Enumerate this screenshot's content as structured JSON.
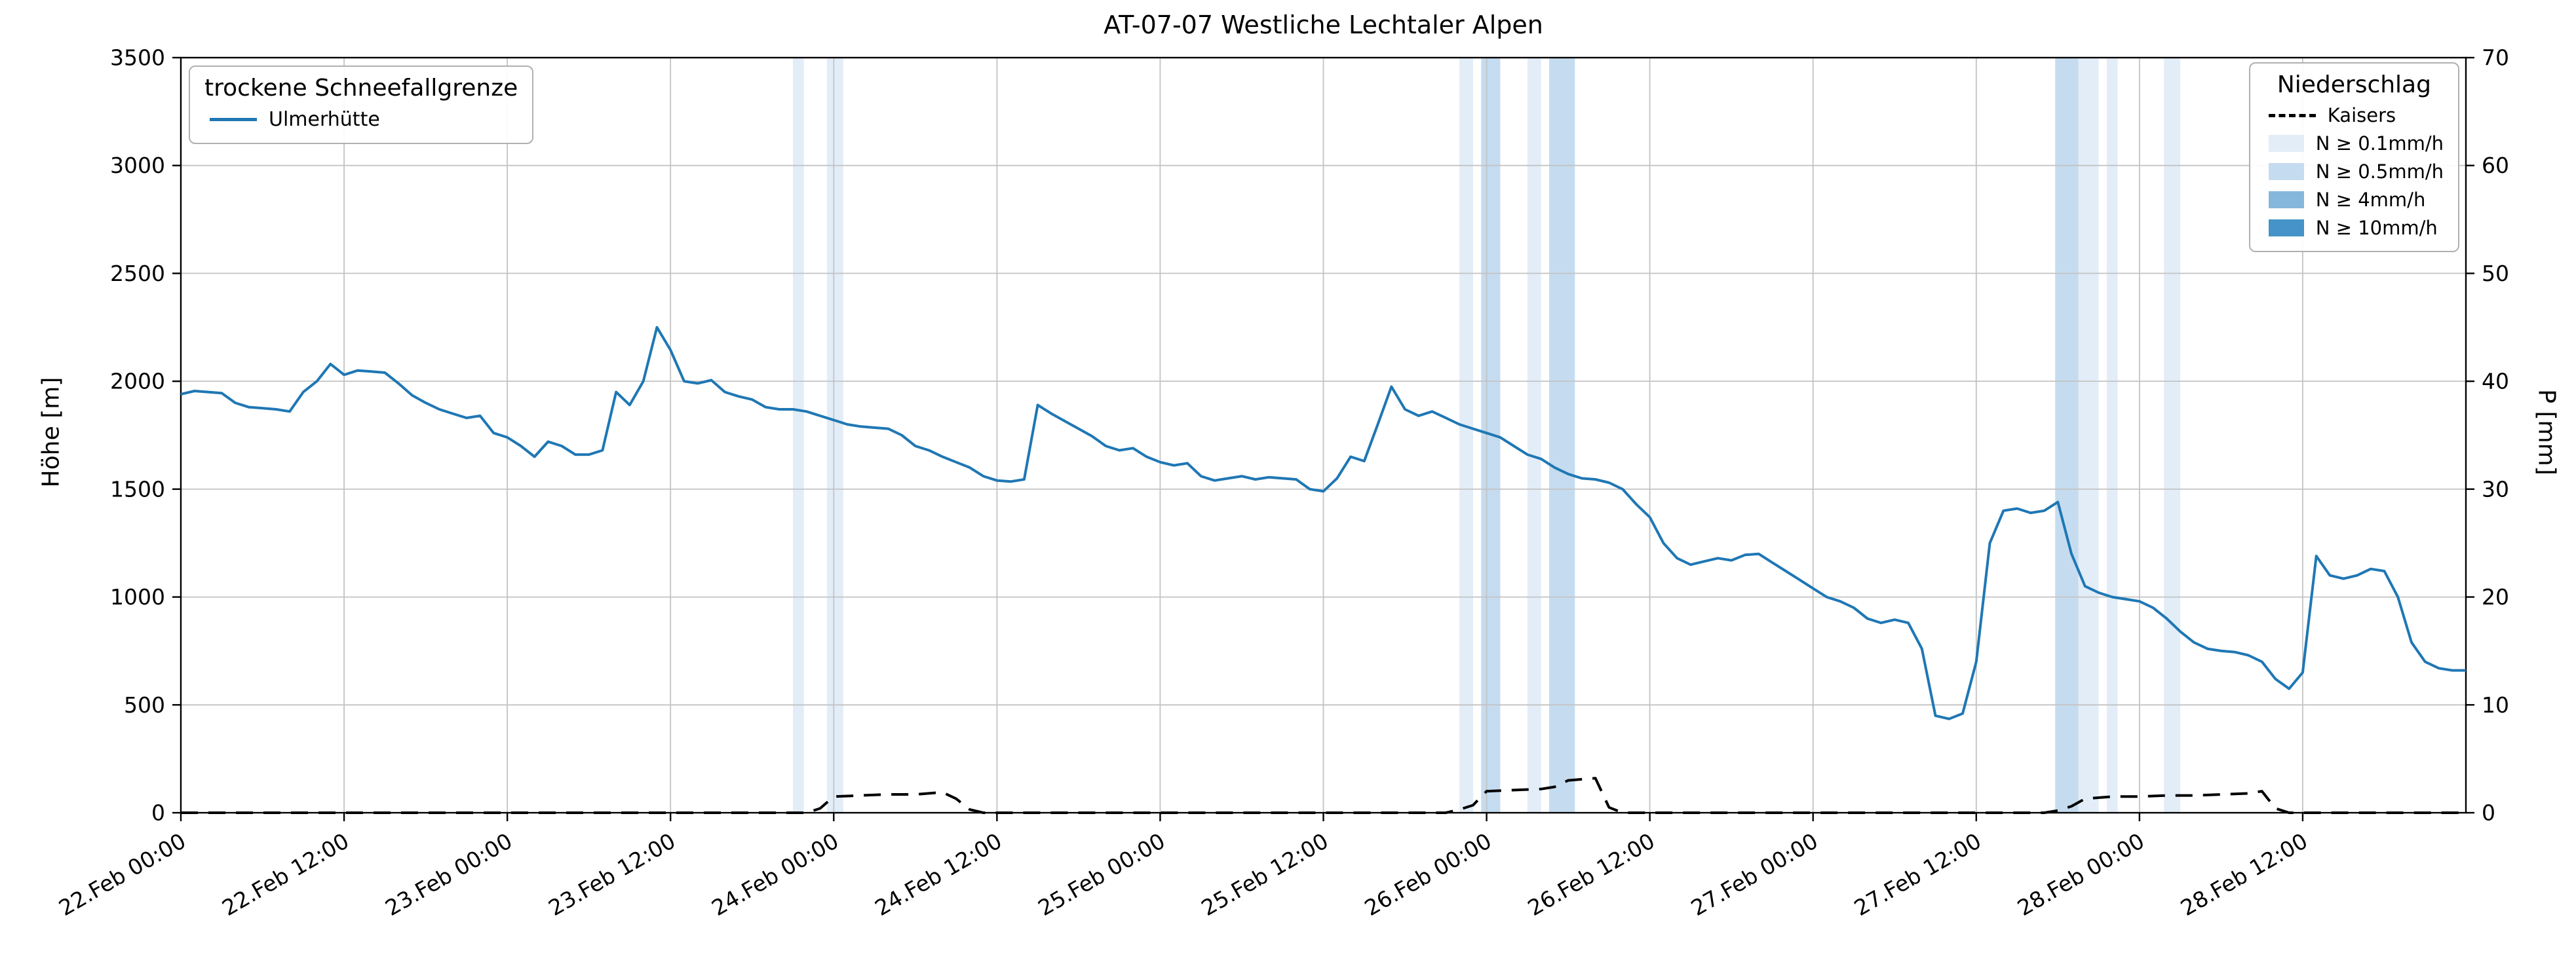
{
  "chart_data": {
    "type": "line",
    "title": "AT-07-07 Westliche Lechtaler Alpen",
    "grid": true,
    "x_axis": {
      "unit": "hours since 22.Feb 00:00",
      "range_hours": [
        0,
        168
      ],
      "tick_hours": [
        0,
        12,
        24,
        36,
        48,
        60,
        72,
        84,
        96,
        108,
        120,
        132,
        144,
        156
      ],
      "tick_labels": [
        "22.Feb 00:00",
        "22.Feb 12:00",
        "23.Feb 00:00",
        "23.Feb 12:00",
        "24.Feb 00:00",
        "24.Feb 12:00",
        "25.Feb 00:00",
        "25.Feb 12:00",
        "26.Feb 00:00",
        "26.Feb 12:00",
        "27.Feb 00:00",
        "27.Feb 12:00",
        "28.Feb 00:00",
        "28.Feb 12:00"
      ]
    },
    "y_left": {
      "label": "Höhe [m]",
      "range": [
        0,
        3500
      ],
      "ticks": [
        0,
        500,
        1000,
        1500,
        2000,
        2500,
        3000,
        3500
      ]
    },
    "y_right": {
      "label": "P [mm]",
      "range": [
        0,
        70
      ],
      "ticks": [
        0,
        10,
        20,
        30,
        40,
        50,
        60,
        70
      ]
    },
    "legend_snowline": {
      "title": "trockene Schneefallgrenze",
      "entry": "Ulmerhütte",
      "line_color": "#1f77b4"
    },
    "legend_precip": {
      "title": "Niederschlag",
      "entry": "Kaisers",
      "levels": [
        {
          "threshold": 0.1,
          "label": "N ≥ 0.1mm/h",
          "color": "#e2edf8"
        },
        {
          "threshold": 0.5,
          "label": "N ≥ 0.5mm/h",
          "color": "#c5dcf0"
        },
        {
          "threshold": 4,
          "label": "N ≥ 4mm/h",
          "color": "#85b7dd"
        },
        {
          "threshold": 10,
          "label": "N ≥ 10mm/h",
          "color": "#4593c8"
        }
      ]
    },
    "series": [
      {
        "name": "Ulmerhütte",
        "axis": "left",
        "style": "solid",
        "color": "#1f77b4",
        "points": [
          [
            0,
            1940
          ],
          [
            1,
            1955
          ],
          [
            2,
            1950
          ],
          [
            3,
            1945
          ],
          [
            4,
            1900
          ],
          [
            5,
            1880
          ],
          [
            6,
            1875
          ],
          [
            7,
            1870
          ],
          [
            8,
            1860
          ],
          [
            9,
            1950
          ],
          [
            10,
            2000
          ],
          [
            11,
            2080
          ],
          [
            12,
            2030
          ],
          [
            13,
            2050
          ],
          [
            14,
            2045
          ],
          [
            15,
            2040
          ],
          [
            16,
            1990
          ],
          [
            17,
            1935
          ],
          [
            18,
            1900
          ],
          [
            19,
            1870
          ],
          [
            20,
            1850
          ],
          [
            21,
            1830
          ],
          [
            22,
            1840
          ],
          [
            23,
            1760
          ],
          [
            24,
            1740
          ],
          [
            25,
            1700
          ],
          [
            26,
            1650
          ],
          [
            27,
            1720
          ],
          [
            28,
            1700
          ],
          [
            29,
            1660
          ],
          [
            30,
            1660
          ],
          [
            31,
            1680
          ],
          [
            32,
            1950
          ],
          [
            33,
            1890
          ],
          [
            34,
            2000
          ],
          [
            35,
            2250
          ],
          [
            36,
            2145
          ],
          [
            37,
            2000
          ],
          [
            38,
            1990
          ],
          [
            39,
            2005
          ],
          [
            40,
            1950
          ],
          [
            41,
            1930
          ],
          [
            42,
            1915
          ],
          [
            43,
            1880
          ],
          [
            44,
            1870
          ],
          [
            45,
            1870
          ],
          [
            46,
            1860
          ],
          [
            47,
            1840
          ],
          [
            48,
            1820
          ],
          [
            49,
            1800
          ],
          [
            50,
            1790
          ],
          [
            51,
            1785
          ],
          [
            52,
            1780
          ],
          [
            53,
            1750
          ],
          [
            54,
            1700
          ],
          [
            55,
            1680
          ],
          [
            56,
            1650
          ],
          [
            57,
            1625
          ],
          [
            58,
            1600
          ],
          [
            59,
            1560
          ],
          [
            60,
            1540
          ],
          [
            61,
            1535
          ],
          [
            62,
            1545
          ],
          [
            63,
            1890
          ],
          [
            64,
            1850
          ],
          [
            65,
            1815
          ],
          [
            66,
            1780
          ],
          [
            67,
            1745
          ],
          [
            68,
            1700
          ],
          [
            69,
            1680
          ],
          [
            70,
            1690
          ],
          [
            71,
            1650
          ],
          [
            72,
            1625
          ],
          [
            73,
            1610
          ],
          [
            74,
            1620
          ],
          [
            75,
            1560
          ],
          [
            76,
            1540
          ],
          [
            77,
            1550
          ],
          [
            78,
            1560
          ],
          [
            79,
            1545
          ],
          [
            80,
            1555
          ],
          [
            81,
            1550
          ],
          [
            82,
            1545
          ],
          [
            83,
            1500
          ],
          [
            84,
            1490
          ],
          [
            85,
            1550
          ],
          [
            86,
            1650
          ],
          [
            87,
            1630
          ],
          [
            88,
            1800
          ],
          [
            89,
            1975
          ],
          [
            90,
            1870
          ],
          [
            91,
            1840
          ],
          [
            92,
            1860
          ],
          [
            93,
            1830
          ],
          [
            94,
            1800
          ],
          [
            95,
            1780
          ],
          [
            96,
            1760
          ],
          [
            97,
            1740
          ],
          [
            98,
            1700
          ],
          [
            99,
            1660
          ],
          [
            100,
            1640
          ],
          [
            101,
            1600
          ],
          [
            102,
            1570
          ],
          [
            103,
            1550
          ],
          [
            104,
            1545
          ],
          [
            105,
            1530
          ],
          [
            106,
            1500
          ],
          [
            107,
            1430
          ],
          [
            108,
            1370
          ],
          [
            109,
            1250
          ],
          [
            110,
            1180
          ],
          [
            111,
            1150
          ],
          [
            112,
            1165
          ],
          [
            113,
            1180
          ],
          [
            114,
            1170
          ],
          [
            115,
            1195
          ],
          [
            116,
            1200
          ],
          [
            117,
            1160
          ],
          [
            118,
            1120
          ],
          [
            119,
            1080
          ],
          [
            120,
            1040
          ],
          [
            121,
            1000
          ],
          [
            122,
            980
          ],
          [
            123,
            950
          ],
          [
            124,
            900
          ],
          [
            125,
            880
          ],
          [
            126,
            895
          ],
          [
            127,
            880
          ],
          [
            128,
            760
          ],
          [
            129,
            450
          ],
          [
            130,
            435
          ],
          [
            131,
            460
          ],
          [
            132,
            700
          ],
          [
            133,
            1250
          ],
          [
            134,
            1400
          ],
          [
            135,
            1410
          ],
          [
            136,
            1390
          ],
          [
            137,
            1400
          ],
          [
            138,
            1440
          ],
          [
            139,
            1200
          ],
          [
            140,
            1050
          ],
          [
            141,
            1020
          ],
          [
            142,
            1000
          ],
          [
            143,
            990
          ],
          [
            144,
            980
          ],
          [
            145,
            950
          ],
          [
            146,
            900
          ],
          [
            147,
            840
          ],
          [
            148,
            790
          ],
          [
            149,
            760
          ],
          [
            150,
            750
          ],
          [
            151,
            745
          ],
          [
            152,
            730
          ],
          [
            153,
            700
          ],
          [
            154,
            620
          ],
          [
            155,
            575
          ],
          [
            156,
            650
          ],
          [
            157,
            1190
          ],
          [
            158,
            1100
          ],
          [
            159,
            1085
          ],
          [
            160,
            1100
          ],
          [
            161,
            1130
          ],
          [
            162,
            1120
          ],
          [
            163,
            1000
          ],
          [
            164,
            790
          ],
          [
            165,
            700
          ],
          [
            166,
            670
          ],
          [
            167,
            660
          ],
          [
            168,
            660
          ]
        ]
      },
      {
        "name": "Kaisers",
        "axis": "right",
        "style": "dashed",
        "color": "#000000",
        "points": [
          [
            0,
            0
          ],
          [
            20,
            0
          ],
          [
            40,
            0
          ],
          [
            46,
            0
          ],
          [
            47,
            0.4
          ],
          [
            48,
            1.5
          ],
          [
            50,
            1.6
          ],
          [
            52,
            1.7
          ],
          [
            54,
            1.7
          ],
          [
            55,
            1.8
          ],
          [
            56,
            1.9
          ],
          [
            57,
            1.3
          ],
          [
            58,
            0.3
          ],
          [
            59,
            0
          ],
          [
            70,
            0
          ],
          [
            80,
            0
          ],
          [
            90,
            0
          ],
          [
            93,
            0
          ],
          [
            94,
            0.3
          ],
          [
            95,
            0.7
          ],
          [
            96,
            2.0
          ],
          [
            98,
            2.1
          ],
          [
            100,
            2.2
          ],
          [
            101,
            2.4
          ],
          [
            102,
            3.0
          ],
          [
            103,
            3.1
          ],
          [
            104,
            3.2
          ],
          [
            105,
            0.5
          ],
          [
            106,
            0
          ],
          [
            115,
            0
          ],
          [
            125,
            0
          ],
          [
            137,
            0
          ],
          [
            138,
            0.2
          ],
          [
            139,
            0.6
          ],
          [
            140,
            1.3
          ],
          [
            142,
            1.5
          ],
          [
            144,
            1.5
          ],
          [
            146,
            1.6
          ],
          [
            148,
            1.6
          ],
          [
            150,
            1.7
          ],
          [
            152,
            1.8
          ],
          [
            153,
            2.0
          ],
          [
            154,
            0.4
          ],
          [
            155,
            0
          ],
          [
            160,
            0
          ],
          [
            164,
            0
          ],
          [
            168,
            0
          ]
        ]
      }
    ],
    "precip_bands": [
      {
        "start_h": 45.0,
        "end_h": 45.8,
        "min_mm_h": 0.1
      },
      {
        "start_h": 47.5,
        "end_h": 48.7,
        "min_mm_h": 0.1
      },
      {
        "start_h": 94.0,
        "end_h": 95.0,
        "min_mm_h": 0.1
      },
      {
        "start_h": 95.6,
        "end_h": 97.0,
        "min_mm_h": 0.5
      },
      {
        "start_h": 99.0,
        "end_h": 100.0,
        "min_mm_h": 0.1
      },
      {
        "start_h": 100.6,
        "end_h": 102.5,
        "min_mm_h": 0.5
      },
      {
        "start_h": 137.8,
        "end_h": 139.5,
        "min_mm_h": 0.5
      },
      {
        "start_h": 139.5,
        "end_h": 141.0,
        "min_mm_h": 0.1
      },
      {
        "start_h": 141.6,
        "end_h": 142.4,
        "min_mm_h": 0.1
      },
      {
        "start_h": 145.8,
        "end_h": 147.0,
        "min_mm_h": 0.1
      }
    ]
  }
}
